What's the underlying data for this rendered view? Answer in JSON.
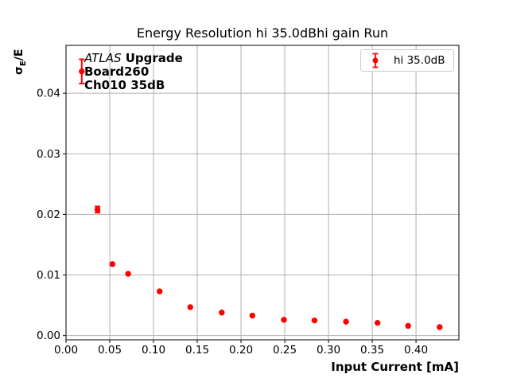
{
  "chart_data": {
    "type": "scatter",
    "title": "Energy Resolution hi 35.0dBhi gain Run",
    "xlabel": "Input Current [mA]",
    "ylabel": {
      "sigma": "σ",
      "subscript": "E",
      "rest": "/E"
    },
    "xlim": [
      0,
      0.449
    ],
    "ylim": [
      -0.0007,
      0.0479
    ],
    "grid": true,
    "legend_position": "upper right",
    "xticks": {
      "values": [
        0,
        0.05,
        0.1,
        0.15,
        0.2,
        0.25,
        0.3,
        0.35,
        0.4
      ],
      "labels": [
        "0.00",
        "0.05",
        "0.10",
        "0.15",
        "0.20",
        "0.25",
        "0.30",
        "0.35",
        "0.40"
      ]
    },
    "yticks": {
      "values": [
        0,
        0.01,
        0.02,
        0.03,
        0.04
      ],
      "labels": [
        "0.00",
        "0.01",
        "0.02",
        "0.03",
        "0.04"
      ]
    },
    "legend": {
      "entries": [
        {
          "label": "hi 35.0dB",
          "color": "#ff0000",
          "marker": "errorbar-circle"
        }
      ]
    },
    "annotation": {
      "line1_italic": "ATLAS",
      "line1_bold": "Upgrade",
      "line2": "Board260",
      "line3": "Ch010 35dB"
    },
    "series": [
      {
        "name": "hi 35.0dB",
        "color": "#ff0000",
        "marker": "circle",
        "points": [
          {
            "x": 0.018,
            "y": 0.0436,
            "yerr": 0.002
          },
          {
            "x": 0.036,
            "y": 0.0208,
            "yerr": 0.0005
          },
          {
            "x": 0.053,
            "y": 0.0118,
            "yerr": 0
          },
          {
            "x": 0.071,
            "y": 0.0102,
            "yerr": 0
          },
          {
            "x": 0.107,
            "y": 0.0073,
            "yerr": 0
          },
          {
            "x": 0.142,
            "y": 0.0047,
            "yerr": 0
          },
          {
            "x": 0.178,
            "y": 0.0038,
            "yerr": 0
          },
          {
            "x": 0.213,
            "y": 0.0033,
            "yerr": 0
          },
          {
            "x": 0.249,
            "y": 0.0026,
            "yerr": 0
          },
          {
            "x": 0.284,
            "y": 0.0025,
            "yerr": 0
          },
          {
            "x": 0.32,
            "y": 0.0023,
            "yerr": 0
          },
          {
            "x": 0.356,
            "y": 0.0021,
            "yerr": 0
          },
          {
            "x": 0.391,
            "y": 0.0016,
            "yerr": 0
          },
          {
            "x": 0.427,
            "y": 0.0014,
            "yerr": 0
          }
        ]
      }
    ],
    "colors": {
      "marker": "#ff0000",
      "grid": "#b0b0b0",
      "axis": "#000000",
      "legend_border": "#cccccc",
      "background": "#ffffff"
    }
  }
}
